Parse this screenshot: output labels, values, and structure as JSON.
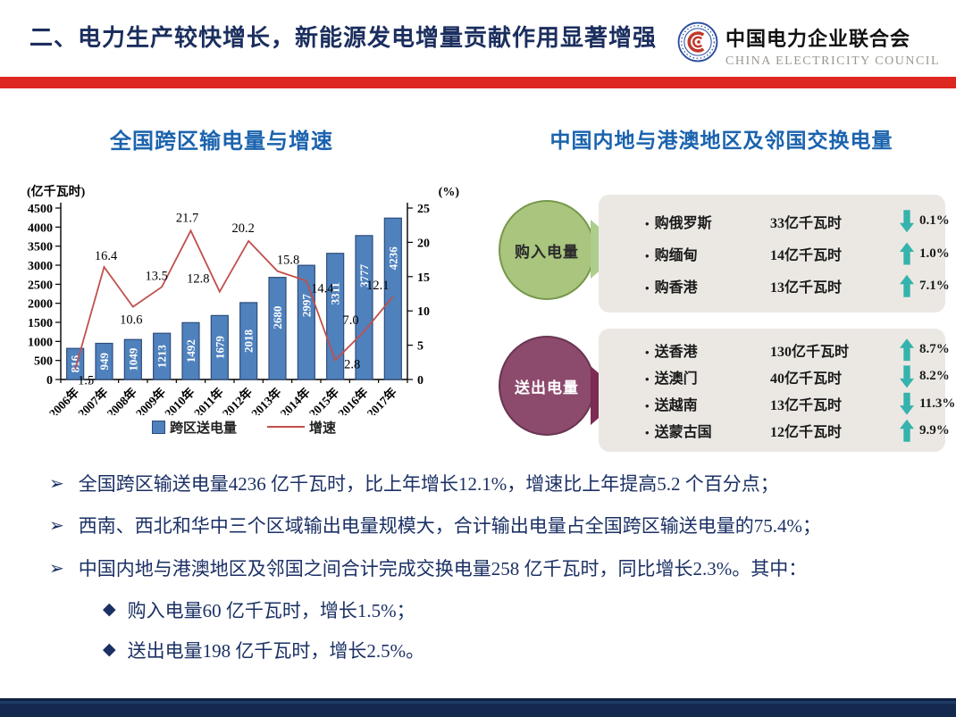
{
  "header": {
    "title": "二、电力生产较快增长，新能源发电增量贡献作用显著增强",
    "org_cn": "中国电力企业联合会",
    "org_en": "CHINA ELECTRICITY COUNCIL"
  },
  "left_chart": {
    "title": "全国跨区输电量与增速"
  },
  "chart_data": {
    "type": "bar+line",
    "title": "全国跨区输电量与增速",
    "categories": [
      "2006年",
      "2007年",
      "2008年",
      "2009年",
      "2010年",
      "2011年",
      "2012年",
      "2013年",
      "2014年",
      "2015年",
      "2016年",
      "2017年"
    ],
    "series": [
      {
        "name": "跨区送电量",
        "type": "bar",
        "axis": "left",
        "color": "#4f81bd",
        "values": [
          816,
          949,
          1049,
          1213,
          1492,
          1679,
          2018,
          2680,
          2997,
          3311,
          3777,
          4236
        ]
      },
      {
        "name": "增速",
        "type": "line",
        "axis": "right",
        "color": "#c0504d",
        "values": [
          1.5,
          16.4,
          10.6,
          13.5,
          21.7,
          12.8,
          20.2,
          15.8,
          14.4,
          2.8,
          7.0,
          12.1
        ]
      }
    ],
    "left_axis": {
      "label": "(亿千瓦时)",
      "min": 0,
      "max": 4500,
      "step": 500
    },
    "right_axis": {
      "label": "(%)",
      "min": 0,
      "max": 25,
      "step": 5
    },
    "legend_position": "bottom",
    "grid": false
  },
  "right_panel": {
    "title": "中国内地与港澳地区及邻国交换电量",
    "groups": [
      {
        "name": "购入电量",
        "circle_color": "#a9c57e",
        "circle_border": "#76974b",
        "circle_text_color": "#2b2b2b",
        "arrow_color": "#accd8c",
        "rows": [
          {
            "label": "购俄罗斯",
            "value": "33亿千瓦时",
            "trend": "down",
            "pct": "0.1%"
          },
          {
            "label": "购缅甸",
            "value": "14亿千瓦时",
            "trend": "up",
            "pct": "1.0%"
          },
          {
            "label": "购香港",
            "value": "13亿千瓦时",
            "trend": "up",
            "pct": "7.1%"
          }
        ]
      },
      {
        "name": "送出电量",
        "circle_color": "#8c4a6c",
        "circle_border": "#693551",
        "circle_text_color": "#ffffff",
        "arrow_color": "#7c2b52",
        "rows": [
          {
            "label": "送香港",
            "value": "130亿千瓦时",
            "trend": "up",
            "pct": "8.7%"
          },
          {
            "label": "送澳门",
            "value": "40亿千瓦时",
            "trend": "down",
            "pct": "8.2%"
          },
          {
            "label": "送越南",
            "value": "13亿千瓦时",
            "trend": "down",
            "pct": "11.3%"
          },
          {
            "label": "送蒙古国",
            "value": "12亿千瓦时",
            "trend": "up",
            "pct": "9.9%"
          }
        ]
      }
    ]
  },
  "bullets": [
    "全国跨区输送电量4236 亿千瓦时，比上年增长12.1%，增速比上年提高5.2 个百分点；",
    "西南、西北和华中三个区域输出电量规模大，合计输出电量占全国跨区输送电量的75.4%；",
    "中国内地与港澳地区及邻国之间合计完成交换电量258 亿千瓦时，同比增长2.3%。其中："
  ],
  "sub_bullets": [
    "购入电量60 亿千瓦时，增长1.5%；",
    "送出电量198 亿千瓦时，增长2.5%。"
  ],
  "colors": {
    "header_text": "#1b2e5e",
    "red_divider": "#dd2721",
    "section_title": "#1b63ae",
    "bar_fill": "#4f81bd",
    "bar_border": "#2e4d7b",
    "line": "#c0504d",
    "trend_arrow": "#35b3ac",
    "panel_bg": "#ebe8e4",
    "footer": "#13294e",
    "bullet_text": "#1b3064"
  }
}
